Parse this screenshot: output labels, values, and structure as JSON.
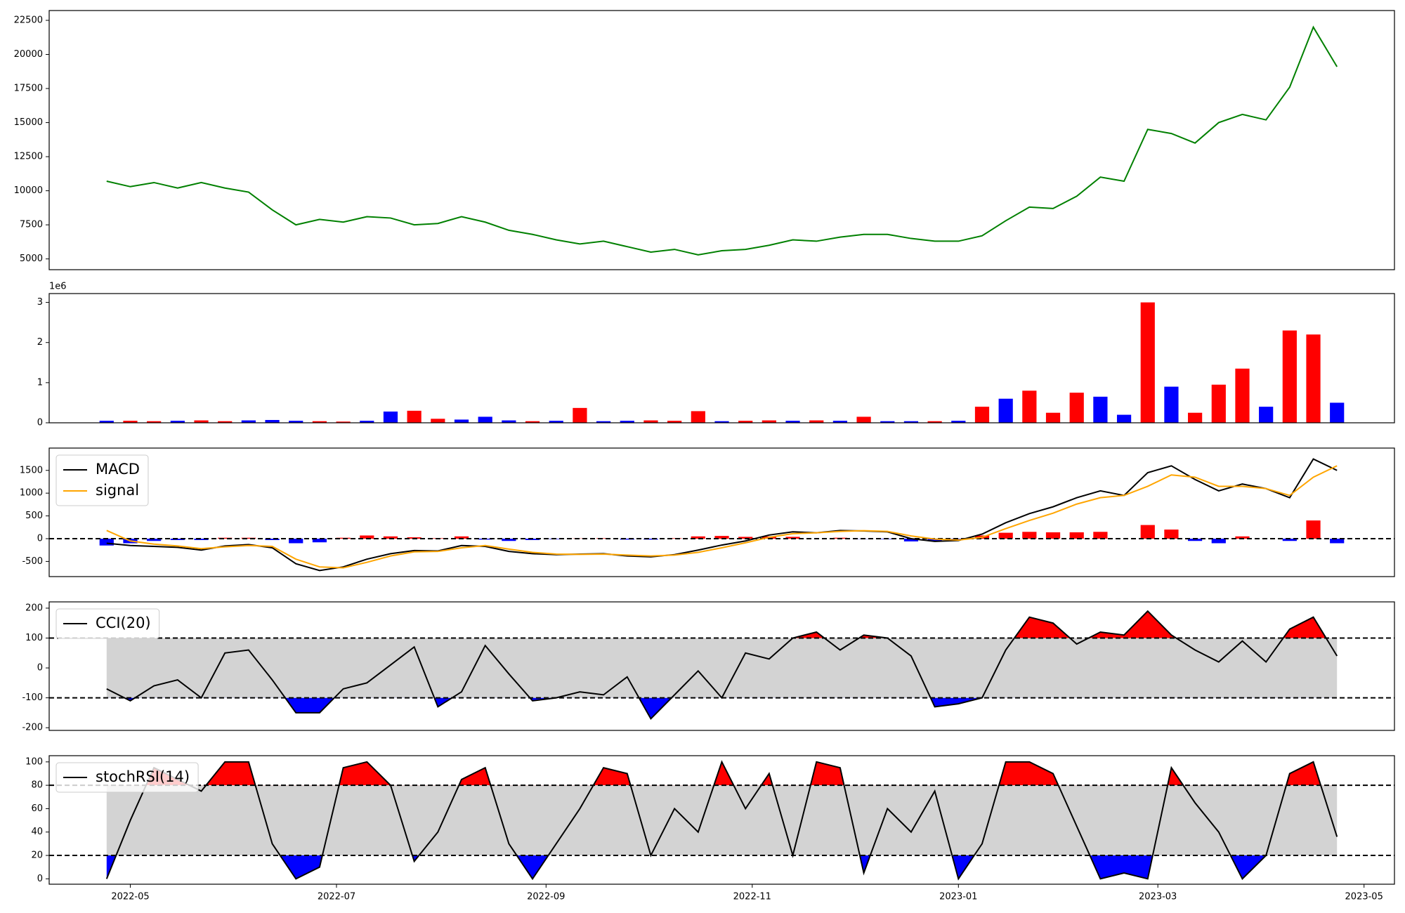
{
  "chart_data": [
    {
      "type": "line",
      "x": [
        "2022-04-24",
        "2022-05-01",
        "2022-05-08",
        "2022-05-15",
        "2022-05-22",
        "2022-05-29",
        "2022-06-05",
        "2022-06-12",
        "2022-06-19",
        "2022-06-26",
        "2022-07-03",
        "2022-07-10",
        "2022-07-17",
        "2022-07-24",
        "2022-07-31",
        "2022-08-07",
        "2022-08-14",
        "2022-08-21",
        "2022-08-28",
        "2022-09-04",
        "2022-09-11",
        "2022-09-18",
        "2022-09-25",
        "2022-10-02",
        "2022-10-09",
        "2022-10-16",
        "2022-10-23",
        "2022-10-30",
        "2022-11-06",
        "2022-11-13",
        "2022-11-20",
        "2022-11-27",
        "2022-12-04",
        "2022-12-11",
        "2022-12-18",
        "2022-12-25",
        "2023-01-01",
        "2023-01-08",
        "2023-01-15",
        "2023-01-22",
        "2023-01-29",
        "2023-02-05",
        "2023-02-12",
        "2023-02-19",
        "2023-02-26",
        "2023-03-05",
        "2023-03-12",
        "2023-03-19",
        "2023-03-26",
        "2023-04-02",
        "2023-04-09",
        "2023-04-16",
        "2023-04-23"
      ],
      "values": [
        10700,
        10300,
        10600,
        10200,
        10600,
        10200,
        9900,
        8600,
        7500,
        7900,
        7700,
        8100,
        8000,
        7500,
        7600,
        8100,
        7700,
        7100,
        6800,
        6400,
        6100,
        6300,
        5900,
        5500,
        5700,
        5300,
        5600,
        5700,
        6000,
        6400,
        6300,
        6600,
        6800,
        6800,
        6500,
        6300,
        6300,
        6700,
        7800,
        8800,
        8700,
        9600,
        11000,
        10700,
        14500,
        14200,
        13500,
        15000,
        15600,
        15200,
        17600,
        22000,
        19100
      ],
      "color": "green",
      "xlim": [
        "2022-04-07",
        "2023-05-10"
      ],
      "ylim": [
        4210,
        23220
      ],
      "yticks": [
        5000,
        7500,
        10000,
        12500,
        15000,
        17500,
        20000,
        22500
      ]
    },
    {
      "type": "bar",
      "x": [
        "2022-04-24",
        "2022-05-01",
        "2022-05-08",
        "2022-05-15",
        "2022-05-22",
        "2022-05-29",
        "2022-06-05",
        "2022-06-12",
        "2022-06-19",
        "2022-06-26",
        "2022-07-03",
        "2022-07-10",
        "2022-07-17",
        "2022-07-24",
        "2022-07-31",
        "2022-08-07",
        "2022-08-14",
        "2022-08-21",
        "2022-08-28",
        "2022-09-04",
        "2022-09-11",
        "2022-09-18",
        "2022-09-25",
        "2022-10-02",
        "2022-10-09",
        "2022-10-16",
        "2022-10-23",
        "2022-10-30",
        "2022-11-06",
        "2022-11-13",
        "2022-11-20",
        "2022-11-27",
        "2022-12-04",
        "2022-12-11",
        "2022-12-18",
        "2022-12-25",
        "2023-01-01",
        "2023-01-08",
        "2023-01-15",
        "2023-01-22",
        "2023-01-29",
        "2023-02-05",
        "2023-02-12",
        "2023-02-19",
        "2023-02-26",
        "2023-03-05",
        "2023-03-12",
        "2023-03-19",
        "2023-03-26",
        "2023-04-02",
        "2023-04-09",
        "2023-04-16",
        "2023-04-23"
      ],
      "values": [
        0.05,
        0.05,
        0.04,
        0.05,
        0.06,
        0.04,
        0.06,
        0.07,
        0.05,
        0.04,
        0.03,
        0.05,
        0.28,
        0.3,
        0.1,
        0.08,
        0.15,
        0.06,
        0.04,
        0.05,
        0.37,
        0.04,
        0.05,
        0.06,
        0.05,
        0.29,
        0.04,
        0.05,
        0.06,
        0.05,
        0.06,
        0.05,
        0.15,
        0.04,
        0.04,
        0.04,
        0.05,
        0.4,
        0.6,
        0.8,
        0.25,
        0.75,
        0.65,
        0.2,
        3.0,
        0.9,
        0.25,
        0.95,
        1.35,
        0.4,
        2.3,
        2.2,
        0.5
      ],
      "colors": [
        "blue",
        "red",
        "red",
        "blue",
        "red",
        "red",
        "blue",
        "blue",
        "blue",
        "red",
        "red",
        "blue",
        "blue",
        "red",
        "red",
        "blue",
        "blue",
        "blue",
        "red",
        "blue",
        "red",
        "blue",
        "blue",
        "red",
        "red",
        "red",
        "blue",
        "red",
        "red",
        "blue",
        "red",
        "blue",
        "red",
        "blue",
        "blue",
        "red",
        "blue",
        "red",
        "blue",
        "red",
        "red",
        "red",
        "blue",
        "blue",
        "red",
        "blue",
        "red",
        "red",
        "red",
        "blue",
        "red",
        "red",
        "blue"
      ],
      "offset_label": "1e6",
      "xlim": [
        "2022-04-07",
        "2023-05-10"
      ],
      "ylim": [
        0,
        3.22
      ],
      "yticks": [
        0,
        1,
        2,
        3
      ]
    },
    {
      "type": "line",
      "x": [
        "2022-04-24",
        "2022-05-01",
        "2022-05-08",
        "2022-05-15",
        "2022-05-22",
        "2022-05-29",
        "2022-06-05",
        "2022-06-12",
        "2022-06-19",
        "2022-06-26",
        "2022-07-03",
        "2022-07-10",
        "2022-07-17",
        "2022-07-24",
        "2022-07-31",
        "2022-08-07",
        "2022-08-14",
        "2022-08-21",
        "2022-08-28",
        "2022-09-04",
        "2022-09-11",
        "2022-09-18",
        "2022-09-25",
        "2022-10-02",
        "2022-10-09",
        "2022-10-16",
        "2022-10-23",
        "2022-10-30",
        "2022-11-06",
        "2022-11-13",
        "2022-11-20",
        "2022-11-27",
        "2022-12-04",
        "2022-12-11",
        "2022-12-18",
        "2022-12-25",
        "2023-01-01",
        "2023-01-08",
        "2023-01-15",
        "2023-01-22",
        "2023-01-29",
        "2023-02-05",
        "2023-02-12",
        "2023-02-19",
        "2023-02-26",
        "2023-03-05",
        "2023-03-12",
        "2023-03-19",
        "2023-03-26",
        "2023-04-02",
        "2023-04-09",
        "2023-04-16",
        "2023-04-23"
      ],
      "series": [
        {
          "name": "MACD",
          "color": "black",
          "values": [
            -100,
            -150,
            -170,
            -190,
            -250,
            -160,
            -130,
            -200,
            -550,
            -700,
            -620,
            -450,
            -330,
            -260,
            -270,
            -150,
            -170,
            -280,
            -330,
            -350,
            -340,
            -330,
            -380,
            -400,
            -350,
            -250,
            -140,
            -50,
            80,
            150,
            130,
            180,
            170,
            150,
            0,
            -60,
            -40,
            100,
            350,
            550,
            700,
            900,
            1050,
            950,
            1450,
            1600,
            1300,
            1050,
            1200,
            1100,
            900,
            1750,
            1500
          ]
        },
        {
          "name": "signal",
          "color": "orange",
          "values": [
            180,
            -50,
            -120,
            -160,
            -220,
            -180,
            -150,
            -170,
            -450,
            -620,
            -640,
            -520,
            -380,
            -290,
            -280,
            -200,
            -150,
            -230,
            -300,
            -340,
            -345,
            -340,
            -360,
            -380,
            -360,
            -300,
            -200,
            -90,
            30,
            110,
            130,
            160,
            175,
            160,
            60,
            -10,
            -30,
            30,
            220,
            400,
            560,
            760,
            900,
            950,
            1150,
            1400,
            1350,
            1150,
            1150,
            1100,
            950,
            1350,
            1600
          ]
        }
      ],
      "histogram": {
        "values": [
          -150,
          -100,
          -50,
          -30,
          -30,
          20,
          20,
          -30,
          -100,
          -80,
          20,
          70,
          50,
          30,
          10,
          50,
          -20,
          -50,
          -30,
          -10,
          5,
          10,
          -20,
          -20,
          10,
          50,
          60,
          40,
          50,
          40,
          0,
          20,
          -5,
          -10,
          -60,
          -50,
          -10,
          70,
          130,
          150,
          140,
          140,
          150,
          0,
          300,
          200,
          -50,
          -100,
          50,
          0,
          -50,
          400,
          -100
        ],
        "positive_color": "red",
        "negative_color": "blue"
      },
      "hlines": [
        0
      ],
      "legend": "upper left",
      "xlim": [
        "2022-04-07",
        "2023-05-10"
      ],
      "ylim": [
        -833,
        1990
      ],
      "yticks": [
        -500,
        0,
        500,
        1000,
        1500
      ]
    },
    {
      "type": "line",
      "x": [
        "2022-04-24",
        "2022-05-01",
        "2022-05-08",
        "2022-05-15",
        "2022-05-22",
        "2022-05-29",
        "2022-06-05",
        "2022-06-12",
        "2022-06-19",
        "2022-06-26",
        "2022-07-03",
        "2022-07-10",
        "2022-07-17",
        "2022-07-24",
        "2022-07-31",
        "2022-08-07",
        "2022-08-14",
        "2022-08-21",
        "2022-08-28",
        "2022-09-04",
        "2022-09-11",
        "2022-09-18",
        "2022-09-25",
        "2022-10-02",
        "2022-10-09",
        "2022-10-16",
        "2022-10-23",
        "2022-10-30",
        "2022-11-06",
        "2022-11-13",
        "2022-11-20",
        "2022-11-27",
        "2022-12-04",
        "2022-12-11",
        "2022-12-18",
        "2022-12-25",
        "2023-01-01",
        "2023-01-08",
        "2023-01-15",
        "2023-01-22",
        "2023-01-29",
        "2023-02-05",
        "2023-02-12",
        "2023-02-19",
        "2023-02-26",
        "2023-03-05",
        "2023-03-12",
        "2023-03-19",
        "2023-03-26",
        "2023-04-02",
        "2023-04-09",
        "2023-04-16",
        "2023-04-23"
      ],
      "series": [
        {
          "name": "CCI(20)",
          "color": "black",
          "values": [
            -70,
            -110,
            -60,
            -40,
            -100,
            50,
            60,
            -40,
            -150,
            -150,
            -70,
            -50,
            10,
            70,
            -130,
            -80,
            75,
            -20,
            -110,
            -100,
            -80,
            -90,
            -30,
            -170,
            -90,
            -10,
            -100,
            50,
            30,
            100,
            120,
            60,
            110,
            100,
            40,
            -130,
            -120,
            -100,
            60,
            170,
            150,
            80,
            120,
            110,
            190,
            110,
            60,
            20,
            90,
            20,
            130,
            170,
            40
          ]
        }
      ],
      "hlines": [
        100,
        -100
      ],
      "band_color": "lightgray",
      "above_color": "red",
      "below_color": "blue",
      "legend": "upper left",
      "xlim": [
        "2022-04-07",
        "2023-05-10"
      ],
      "ylim": [
        -209,
        221
      ],
      "yticks": [
        -200,
        -100,
        0,
        100,
        200
      ]
    },
    {
      "type": "line",
      "x": [
        "2022-04-24",
        "2022-05-01",
        "2022-05-08",
        "2022-05-15",
        "2022-05-22",
        "2022-05-29",
        "2022-06-05",
        "2022-06-12",
        "2022-06-19",
        "2022-06-26",
        "2022-07-03",
        "2022-07-10",
        "2022-07-17",
        "2022-07-24",
        "2022-07-31",
        "2022-08-07",
        "2022-08-14",
        "2022-08-21",
        "2022-08-28",
        "2022-09-04",
        "2022-09-11",
        "2022-09-18",
        "2022-09-25",
        "2022-10-02",
        "2022-10-09",
        "2022-10-16",
        "2022-10-23",
        "2022-10-30",
        "2022-11-06",
        "2022-11-13",
        "2022-11-20",
        "2022-11-27",
        "2022-12-04",
        "2022-12-11",
        "2022-12-18",
        "2022-12-25",
        "2023-01-01",
        "2023-01-08",
        "2023-01-15",
        "2023-01-22",
        "2023-01-29",
        "2023-02-05",
        "2023-02-12",
        "2023-02-19",
        "2023-02-26",
        "2023-03-05",
        "2023-03-12",
        "2023-03-19",
        "2023-03-26",
        "2023-04-02",
        "2023-04-09",
        "2023-04-16",
        "2023-04-23"
      ],
      "series": [
        {
          "name": "stochRSI(14)",
          "color": "black",
          "values": [
            0,
            50,
            95,
            85,
            75,
            100,
            100,
            30,
            0,
            10,
            95,
            100,
            80,
            15,
            40,
            85,
            95,
            30,
            0,
            30,
            60,
            95,
            90,
            20,
            60,
            40,
            100,
            60,
            90,
            20,
            100,
            95,
            5,
            60,
            40,
            75,
            0,
            30,
            100,
            100,
            90,
            45,
            0,
            5,
            0,
            95,
            65,
            40,
            0,
            20,
            90,
            100,
            36
          ]
        }
      ],
      "hlines": [
        80,
        20
      ],
      "band_color": "lightgray",
      "above_color": "red",
      "below_color": "blue",
      "legend": "upper left",
      "xlim": [
        "2022-04-07",
        "2023-05-10"
      ],
      "ylim": [
        -4.6,
        105.3
      ],
      "yticks": [
        0,
        20,
        40,
        60,
        80,
        100
      ],
      "xticks": [
        {
          "value": "2022-05-01",
          "label": "2022-05"
        },
        {
          "value": "2022-07-01",
          "label": "2022-07"
        },
        {
          "value": "2022-09-01",
          "label": "2022-09"
        },
        {
          "value": "2022-11-01",
          "label": "2022-11"
        },
        {
          "value": "2023-01-01",
          "label": "2023-01"
        },
        {
          "value": "2023-03-01",
          "label": "2023-03"
        },
        {
          "value": "2023-05-01",
          "label": "2023-05"
        }
      ]
    }
  ]
}
